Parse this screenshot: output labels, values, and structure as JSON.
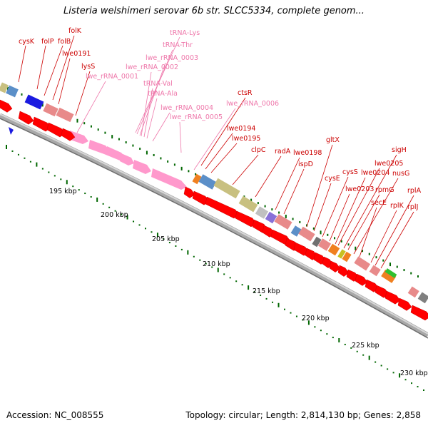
{
  "title": "Listeria welshimeri serovar 6b str. SLCC5334, complete genom...",
  "footer": {
    "accession": "Accession: NC_008555",
    "summary": "Topology: circular; Length: 2,814,130 bp; Genes: 2,858"
  },
  "colors": {
    "gene": "#ff0000",
    "rna": "#ff99cc",
    "gene_label": "#cc0000",
    "rna_label": "#ee77aa",
    "backbone": "#808080",
    "tick": "#006600"
  },
  "ticks": [
    "195 kbp",
    "200 kbp",
    "205 kbp",
    "210 kbp",
    "215 kbp",
    "220 kbp",
    "225 kbp",
    "230 kbp"
  ],
  "gene_labels": [
    "cysK",
    "folP",
    "folB",
    "folK",
    "lwe0191",
    "lysS",
    "lwe0194",
    "lwe0195",
    "ctsR",
    "clpC",
    "radA",
    "lwe0198",
    "ispD",
    "gltX",
    "cysE",
    "cysS",
    "lwe0203",
    "lwe0204",
    "lwe0205",
    "sigH",
    "rpmG",
    "nusG",
    "secE",
    "rplK",
    "rplA",
    "rplJ"
  ],
  "rna_labels": [
    "tRNA-Lys",
    "tRNA-Thr",
    "lwe_rRNA_0003",
    "lwe_rRNA_0002",
    "lwe_rRNA_0001",
    "tRNA-Val",
    "tRNA-Ala",
    "lwe_rRNA_0004",
    "lwe_rRNA_0005",
    "lwe_rRNA_0006"
  ]
}
